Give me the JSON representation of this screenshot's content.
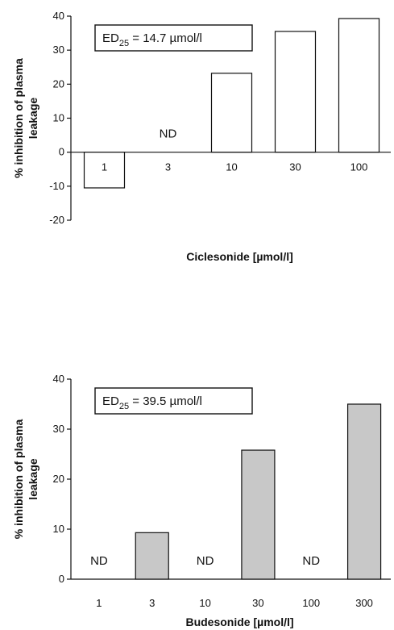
{
  "chart_data": [
    {
      "type": "bar",
      "title": "",
      "xlabel": "Ciclesonide [µmol/l]",
      "ylabel_line1": "% inhibition of plasma",
      "ylabel_line2": "leakage",
      "categories": [
        "1",
        "3",
        "10",
        "30",
        "100"
      ],
      "values": [
        -10.5,
        null,
        23.2,
        35.5,
        39.3
      ],
      "not_determined_label": "ND",
      "annotation": {
        "prefix": "ED",
        "subscript": "25",
        "text": " = 14.7 µmol/l"
      },
      "ylim": [
        -20,
        40
      ],
      "yticks": [
        -20,
        -10,
        0,
        10,
        20,
        30,
        40
      ],
      "bar_color": "#ffffff",
      "grid": false
    },
    {
      "type": "bar",
      "title": "",
      "xlabel": "Budesonide [µmol/l]",
      "ylabel_line1": "% inhibition of plasma",
      "ylabel_line2": "leakage",
      "categories": [
        "1",
        "3",
        "10",
        "30",
        "100",
        "300"
      ],
      "values": [
        null,
        9.3,
        null,
        25.8,
        null,
        35.0
      ],
      "not_determined_label": "ND",
      "annotation": {
        "prefix": "ED",
        "subscript": "25",
        "text": " = 39.5 µmol/l"
      },
      "ylim": [
        0,
        40
      ],
      "yticks": [
        0,
        10,
        20,
        30,
        40
      ],
      "bar_color": "#c8c8c8",
      "grid": false
    }
  ]
}
